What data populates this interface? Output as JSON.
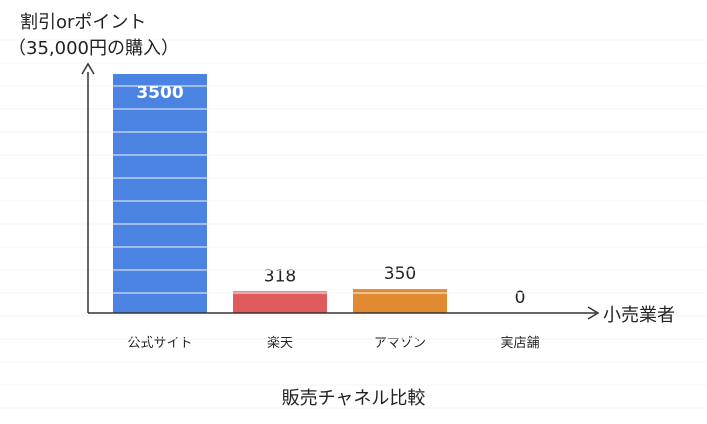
{
  "chart_data": {
    "type": "bar",
    "title": "",
    "ylabel_line1": "割引orポイント",
    "ylabel_line2": "（35,000円の購入）",
    "xlabel": "小売業者",
    "caption": "販売チャネル比較",
    "categories": [
      "公式サイト",
      "楽天",
      "アマゾン",
      "実店舗"
    ],
    "values": [
      3500,
      318,
      350,
      0
    ],
    "data_labels": [
      "3500",
      "318",
      "350",
      "0"
    ],
    "colors": [
      "#4a83e1",
      "#e05c5c",
      "#e08a32",
      "#9e9e9e"
    ],
    "ylim": [
      0,
      3500
    ],
    "grid": false,
    "legend": "none"
  }
}
